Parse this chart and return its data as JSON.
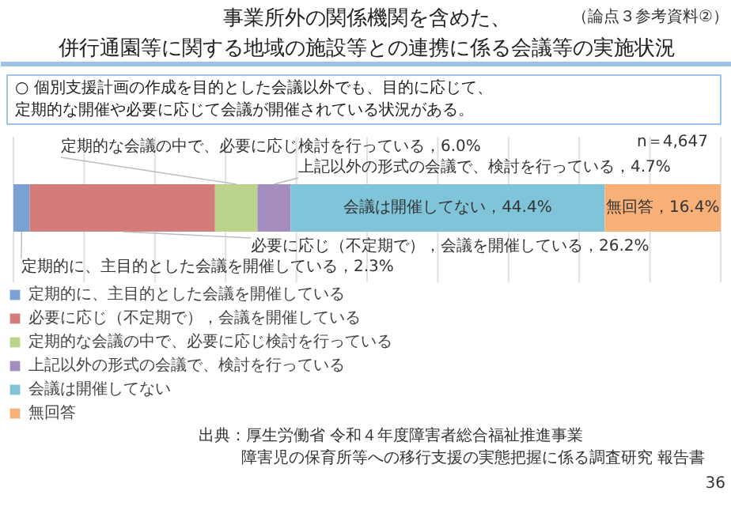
{
  "chart_data": {
    "type": "bar",
    "orientation": "horizontal",
    "stacked": true,
    "title": "事業所外の関係機関を含めた、併行通園等に関する地域の施設等との連携に係る会議等の実施状況",
    "subtitle": "○ 個別支援計画の作成を目的とした会議以外でも、目的に応じて、定期的な開催や必要に応じて会議が開催されている状況がある。",
    "annotations": [
      "（論点３参考資料②）",
      "n＝4,647",
      "出典：厚生労働省 令和４年度障害者総合福祉推進事業",
      "障害児の保育所等への移行支援の実態把握に係る調査研究 報告書",
      "36"
    ],
    "categories": [
      null
    ],
    "series": [
      {
        "name": "定期的に、主目的とした会議を開催している",
        "color": "#7aa0d4",
        "values": [
          2.3
        ],
        "value_labels": [
          "定期的に、主目的とした会議を開催している，2.3%"
        ]
      },
      {
        "name": "必要に応じ（不定期で），会議を開催している",
        "color": "#d47b7b",
        "values": [
          26.2
        ],
        "value_labels": [
          "必要に応じ（不定期で），会議を開催している，26.2%"
        ]
      },
      {
        "name": "定期的な会議の中で、必要に応じ検討を行っている",
        "color": "#bcd38c",
        "values": [
          6.0
        ],
        "value_labels": [
          "定期的な会議の中で、必要に応じ検討を行っている，6.0%"
        ]
      },
      {
        "name": "上記以外の形式の会議で、検討を行っている",
        "color": "#a58ebf",
        "values": [
          4.7
        ],
        "value_labels": [
          "上記以外の形式の会議で、検討を行っている，4.7%"
        ]
      },
      {
        "name": "会議は開催してない",
        "color": "#7fc4d8",
        "values": [
          44.4
        ],
        "value_labels": [
          "会議は開催してない，44.4%"
        ]
      },
      {
        "name": "無回答",
        "color": "#f8b079",
        "values": [
          16.4
        ],
        "value_labels": [
          "無回答，16.4%"
        ]
      }
    ],
    "xlim": [
      0,
      100
    ],
    "xticks": [
      {
        "value": 0,
        "label": null
      },
      {
        "value": 10,
        "label": null
      },
      {
        "value": 20,
        "label": null
      },
      {
        "value": 30,
        "label": null
      },
      {
        "value": 40,
        "label": null
      },
      {
        "value": 50,
        "label": null
      },
      {
        "value": 60,
        "label": null
      },
      {
        "value": 70,
        "label": null
      },
      {
        "value": 80,
        "label": null
      },
      {
        "value": 90,
        "label": null
      },
      {
        "value": 100,
        "label": null
      }
    ],
    "tick_labels": false,
    "grid": "x",
    "legend": "bottom"
  }
}
